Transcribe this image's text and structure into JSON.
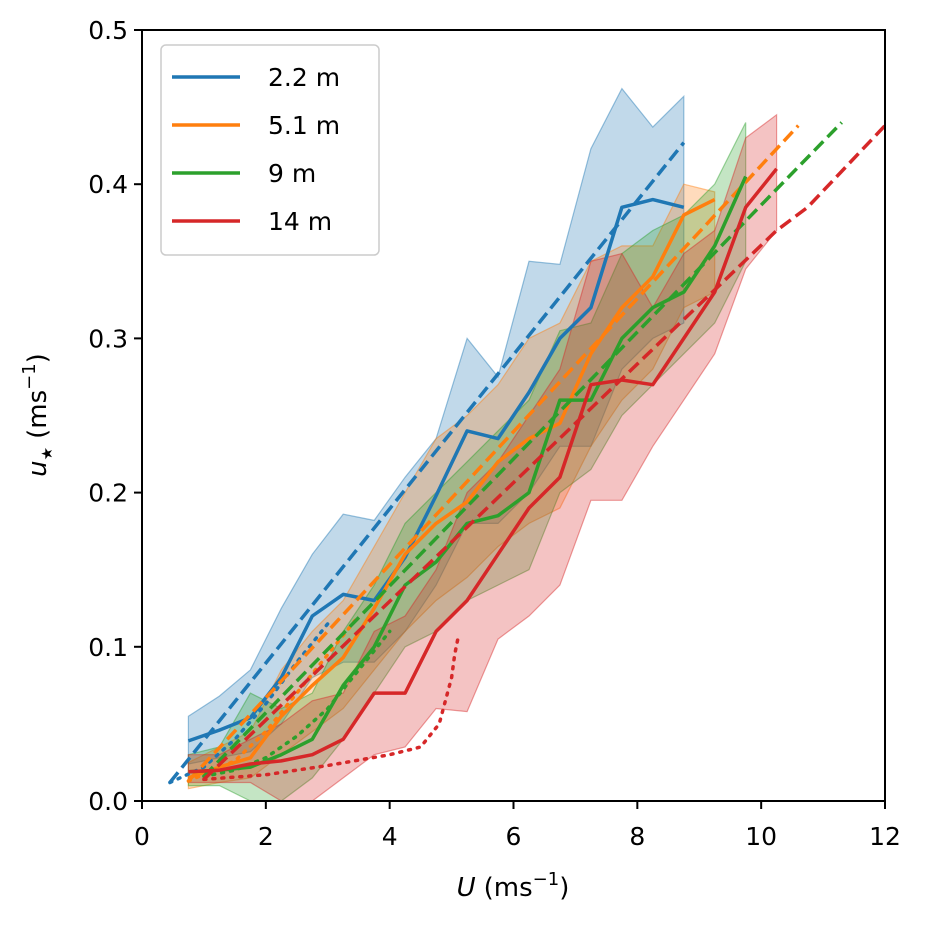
{
  "chart_data": {
    "type": "line",
    "title": "",
    "xlabel": {
      "symbol": "U",
      "unit": "(ms",
      "exp": "−1",
      "close": ")"
    },
    "ylabel": {
      "symbol": "u",
      "sub": "★",
      "unit": "(ms",
      "exp": "−1",
      "close": ")"
    },
    "xlim": [
      0,
      12
    ],
    "ylim": [
      0,
      0.5
    ],
    "xticks": [
      0,
      2,
      4,
      6,
      8,
      10,
      12
    ],
    "yticks": [
      0.0,
      0.1,
      0.2,
      0.3,
      0.4,
      0.5
    ],
    "xtick_labels": [
      "0",
      "2",
      "4",
      "6",
      "8",
      "10",
      "12"
    ],
    "ytick_labels": [
      "0.0",
      "0.1",
      "0.2",
      "0.3",
      "0.4",
      "0.5"
    ],
    "grid": false,
    "legend_position": "top-left",
    "series": [
      {
        "name": "2.2 m",
        "color": "#1f77b4",
        "observed": {
          "x": [
            0.75,
            1.25,
            1.75,
            2.25,
            2.75,
            3.25,
            3.75,
            4.25,
            4.75,
            5.25,
            5.75,
            6.25,
            6.75,
            7.25,
            7.75,
            8.25,
            8.75
          ],
          "y": [
            0.039,
            0.046,
            0.054,
            0.08,
            0.12,
            0.134,
            0.13,
            0.158,
            0.198,
            0.24,
            0.235,
            0.265,
            0.3,
            0.32,
            0.385,
            0.39,
            0.385
          ],
          "lower": [
            0.024,
            0.028,
            0.032,
            0.05,
            0.08,
            0.09,
            0.09,
            0.11,
            0.14,
            0.18,
            0.18,
            0.2,
            0.23,
            0.23,
            0.28,
            0.3,
            0.31
          ],
          "upper": [
            0.055,
            0.068,
            0.085,
            0.125,
            0.16,
            0.186,
            0.182,
            0.21,
            0.235,
            0.3,
            0.275,
            0.35,
            0.348,
            0.423,
            0.462,
            0.437,
            0.457
          ]
        },
        "fit": {
          "x": [
            0.45,
            8.75
          ],
          "y": [
            0.012,
            0.427
          ]
        },
        "model": {
          "x": [
            0.45,
            1.0,
            1.5,
            2.0,
            2.5,
            3.0
          ],
          "y": [
            0.012,
            0.022,
            0.04,
            0.063,
            0.09,
            0.115
          ]
        }
      },
      {
        "name": "5.1 m",
        "color": "#ff7f0e",
        "observed": {
          "x": [
            0.75,
            1.25,
            1.75,
            2.25,
            2.75,
            3.25,
            3.75,
            4.25,
            4.75,
            5.25,
            5.75,
            6.25,
            6.75,
            7.25,
            7.75,
            8.25,
            8.75,
            9.25
          ],
          "y": [
            0.015,
            0.022,
            0.028,
            0.055,
            0.075,
            0.093,
            0.125,
            0.16,
            0.18,
            0.194,
            0.22,
            0.235,
            0.245,
            0.29,
            0.32,
            0.34,
            0.38,
            0.39
          ],
          "lower": [
            0.008,
            0.012,
            0.015,
            0.03,
            0.045,
            0.06,
            0.085,
            0.11,
            0.13,
            0.145,
            0.165,
            0.18,
            0.19,
            0.23,
            0.26,
            0.28,
            0.32,
            0.33
          ],
          "upper": [
            0.025,
            0.035,
            0.045,
            0.085,
            0.11,
            0.13,
            0.165,
            0.2,
            0.235,
            0.25,
            0.27,
            0.3,
            0.31,
            0.35,
            0.36,
            0.36,
            0.4,
            0.395
          ]
        },
        "fit": {
          "x": [
            0.75,
            10.6
          ],
          "y": [
            0.013,
            0.438
          ]
        },
        "model": {
          "x": [
            0.75,
            1.5,
            2.0,
            2.5,
            3.0,
            3.5
          ],
          "y": [
            0.013,
            0.026,
            0.045,
            0.07,
            0.095,
            0.12
          ]
        }
      },
      {
        "name": "9 m",
        "color": "#2ca02c",
        "observed": {
          "x": [
            0.75,
            1.25,
            1.75,
            2.25,
            2.75,
            3.25,
            3.75,
            4.25,
            4.75,
            5.25,
            5.75,
            6.25,
            6.75,
            7.25,
            7.75,
            8.25,
            8.75,
            9.25,
            9.75
          ],
          "y": [
            0.019,
            0.02,
            0.022,
            0.03,
            0.04,
            0.075,
            0.1,
            0.14,
            0.155,
            0.18,
            0.185,
            0.2,
            0.26,
            0.26,
            0.3,
            0.32,
            0.33,
            0.36,
            0.405
          ],
          "lower": [
            0.01,
            0.01,
            0.0,
            0.0,
            0.015,
            0.04,
            0.07,
            0.1,
            0.11,
            0.13,
            0.14,
            0.15,
            0.2,
            0.215,
            0.25,
            0.27,
            0.29,
            0.31,
            0.35
          ],
          "upper": [
            0.03,
            0.035,
            0.07,
            0.06,
            0.07,
            0.11,
            0.14,
            0.18,
            0.2,
            0.22,
            0.24,
            0.26,
            0.305,
            0.31,
            0.355,
            0.37,
            0.38,
            0.4,
            0.44
          ]
        },
        "fit": {
          "x": [
            1.0,
            11.3
          ],
          "y": [
            0.016,
            0.44
          ]
        },
        "model": {
          "x": [
            1.0,
            1.5,
            2.0,
            2.5,
            3.0,
            3.5,
            4.0
          ],
          "y": [
            0.016,
            0.02,
            0.028,
            0.042,
            0.06,
            0.085,
            0.11
          ]
        }
      },
      {
        "name": "14 m",
        "color": "#d62728",
        "observed": {
          "x": [
            0.75,
            1.25,
            1.75,
            2.25,
            2.75,
            3.25,
            3.75,
            4.25,
            4.75,
            5.25,
            5.75,
            6.25,
            6.75,
            7.25,
            7.75,
            8.25,
            8.75,
            9.25,
            9.75,
            10.25
          ],
          "y": [
            0.019,
            0.02,
            0.024,
            0.026,
            0.03,
            0.04,
            0.07,
            0.07,
            0.11,
            0.13,
            0.16,
            0.19,
            0.21,
            0.27,
            0.273,
            0.27,
            0.3,
            0.33,
            0.385,
            0.41
          ],
          "lower": [
            0.012,
            0.012,
            0.012,
            0.0,
            0.0,
            0.015,
            0.03,
            0.035,
            0.06,
            0.058,
            0.105,
            0.12,
            0.14,
            0.195,
            0.195,
            0.23,
            0.26,
            0.29,
            0.345,
            0.37
          ],
          "upper": [
            0.03,
            0.03,
            0.04,
            0.05,
            0.065,
            0.07,
            0.11,
            0.12,
            0.15,
            0.2,
            0.22,
            0.25,
            0.28,
            0.35,
            0.355,
            0.32,
            0.355,
            0.37,
            0.43,
            0.445
          ]
        },
        "fit": {
          "x": [
            1.0,
            10.25,
            10.75,
            12.0
          ],
          "y": [
            0.014,
            0.37,
            0.385,
            0.438
          ]
        },
        "model": {
          "x": [
            1.0,
            2.0,
            3.0,
            4.0,
            4.5,
            4.8,
            5.0,
            5.05,
            5.1
          ],
          "y": [
            0.014,
            0.017,
            0.023,
            0.03,
            0.035,
            0.05,
            0.08,
            0.095,
            0.105
          ]
        }
      }
    ]
  }
}
